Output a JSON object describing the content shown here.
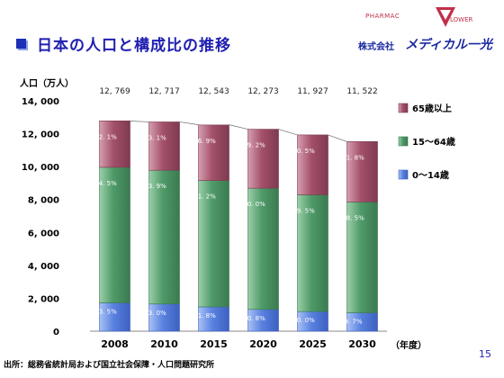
{
  "header": {
    "title": "日本の人口と構成比の推移"
  },
  "logo": {
    "top_left": "PHARMAC",
    "top_right": "LOWER",
    "company": "株式会社",
    "brand": "メディカル一光"
  },
  "footer": {
    "source": "出所：総務省統計局および国立社会保障・人口問題研究所",
    "page_number": "15"
  },
  "colors": {
    "elderly": "#a4516a",
    "working": "#4f9a68",
    "children": "#5a82e0",
    "title": "#1f1fb0"
  },
  "chart_data": {
    "type": "bar",
    "stacked": true,
    "title": "",
    "ylabel": "人口（万人）",
    "xlabel": "（年度）",
    "ylim": [
      0,
      14000
    ],
    "yticks": [
      "0",
      "2, 000",
      "4, 000",
      "6, 000",
      "8, 000",
      "10, 000",
      "12, 000",
      "14, 000"
    ],
    "categories": [
      "2008",
      "2010",
      "2015",
      "2020",
      "2025",
      "2030"
    ],
    "totals": [
      12769,
      12717,
      12543,
      12273,
      11927,
      11522
    ],
    "total_labels": [
      "12, 769",
      "12, 717",
      "12, 543",
      "12, 273",
      "11, 927",
      "11, 522"
    ],
    "legend_position": "right",
    "series": [
      {
        "name": "0～14歳",
        "color": "#5a82e0",
        "percent": [
          13.5,
          13.0,
          11.8,
          10.8,
          10.0,
          9.7
        ],
        "labels": [
          "13. 5%",
          "13. 0%",
          "11. 8%",
          "10. 8%",
          "10. 0%",
          "9. 7%"
        ]
      },
      {
        "name": "15～64歳",
        "color": "#4f9a68",
        "percent": [
          64.5,
          63.9,
          61.2,
          60.0,
          59.5,
          58.5
        ],
        "labels": [
          "64. 5%",
          "63. 9%",
          "61. 2%",
          "60. 0%",
          "59. 5%",
          "58. 5%"
        ]
      },
      {
        "name": "65歳以上",
        "color": "#a4516a",
        "percent": [
          22.1,
          23.1,
          26.9,
          29.2,
          30.5,
          31.8
        ],
        "labels": [
          "22. 1%",
          "23. 1%",
          "26. 9%",
          "29. 2%",
          "30. 5%",
          "31. 8%"
        ]
      }
    ]
  }
}
